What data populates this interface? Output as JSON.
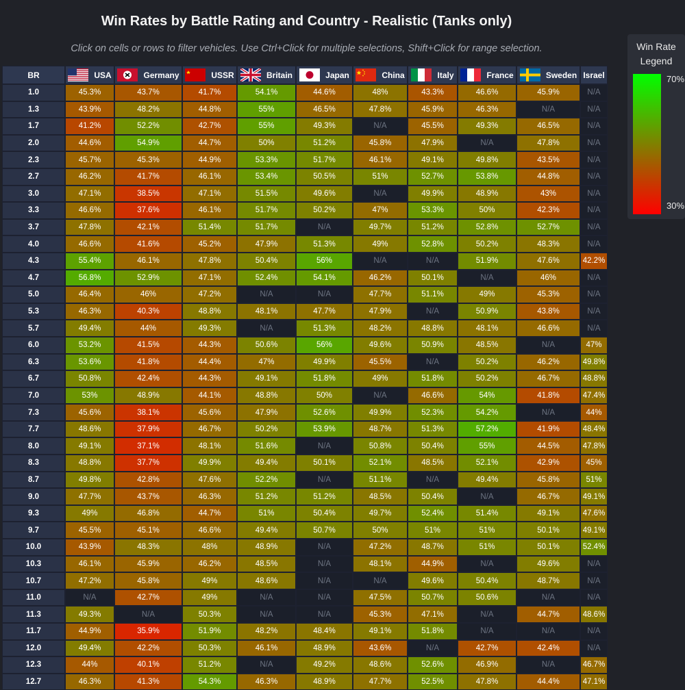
{
  "title": "Win Rates by Battle Rating and Country - Realistic (Tanks only)",
  "subtitle": "Click on cells or rows to filter vehicles. Use Ctrl+Click for multiple selections, Shift+Click for range selection.",
  "legend": {
    "title": "Win Rate Legend",
    "max_label": "70%",
    "min_label": "30%",
    "max_color": "#00ff00",
    "mid_color": "#808000",
    "min_color": "#ff0000"
  },
  "colors": {
    "background": "#202228",
    "header": "#2e3850",
    "na_cell": "#1b1f2a"
  },
  "chart_data": {
    "type": "heatmap",
    "title": "Win Rates by Battle Rating and Country - Realistic (Tanks only)",
    "row_header": "BR",
    "color_scale": {
      "min": 30,
      "max": 70,
      "unit": "%"
    },
    "columns": [
      {
        "name": "USA",
        "flag": "usa-flag"
      },
      {
        "name": "Germany",
        "flag": "germany-flag"
      },
      {
        "name": "USSR",
        "flag": "ussr-flag"
      },
      {
        "name": "Britain",
        "flag": "britain-flag"
      },
      {
        "name": "Japan",
        "flag": "japan-flag"
      },
      {
        "name": "China",
        "flag": "china-flag"
      },
      {
        "name": "Italy",
        "flag": "italy-flag"
      },
      {
        "name": "France",
        "flag": "france-flag"
      },
      {
        "name": "Sweden",
        "flag": "sweden-flag"
      },
      {
        "name": "Israel",
        "flag": ""
      }
    ],
    "rows": [
      "1.0",
      "1.3",
      "1.7",
      "2.0",
      "2.3",
      "2.7",
      "3.0",
      "3.3",
      "3.7",
      "4.0",
      "4.3",
      "4.7",
      "5.0",
      "5.3",
      "5.7",
      "6.0",
      "6.3",
      "6.7",
      "7.0",
      "7.3",
      "7.7",
      "8.0",
      "8.3",
      "8.7",
      "9.0",
      "9.3",
      "9.7",
      "10.0",
      "10.3",
      "10.7",
      "11.0",
      "11.3",
      "11.7",
      "12.0",
      "12.3",
      "12.7"
    ],
    "values": [
      [
        45.3,
        43.7,
        41.7,
        54.1,
        44.6,
        48,
        43.3,
        46.6,
        45.9,
        null
      ],
      [
        43.9,
        48.2,
        44.8,
        55,
        46.5,
        47.8,
        45.9,
        46.3,
        null,
        null
      ],
      [
        41.2,
        52.2,
        42.7,
        55,
        49.3,
        null,
        45.5,
        49.3,
        46.5,
        null
      ],
      [
        44.6,
        54.9,
        44.7,
        50,
        51.2,
        45.8,
        47.9,
        null,
        47.8,
        null
      ],
      [
        45.7,
        45.3,
        44.9,
        53.3,
        51.7,
        46.1,
        49.1,
        49.8,
        43.5,
        null
      ],
      [
        46.2,
        41.7,
        46.1,
        53.4,
        50.5,
        51,
        52.7,
        53.8,
        44.8,
        null
      ],
      [
        47.1,
        38.5,
        47.1,
        51.5,
        49.6,
        null,
        49.9,
        48.9,
        43,
        null
      ],
      [
        46.6,
        37.6,
        46.1,
        51.7,
        50.2,
        47,
        53.3,
        50,
        42.3,
        null
      ],
      [
        47.8,
        42.1,
        51.4,
        51.7,
        null,
        49.7,
        51.2,
        52.8,
        52.7,
        null
      ],
      [
        46.6,
        41.6,
        45.2,
        47.9,
        51.3,
        49,
        52.8,
        50.2,
        48.3,
        null
      ],
      [
        55.4,
        46.1,
        47.8,
        50.4,
        56,
        null,
        null,
        51.9,
        47.6,
        42.2
      ],
      [
        56.8,
        52.9,
        47.1,
        52.4,
        54.1,
        46.2,
        50.1,
        null,
        46,
        null
      ],
      [
        46.4,
        46,
        47.2,
        null,
        null,
        47.7,
        51.1,
        49,
        45.3,
        null
      ],
      [
        46.3,
        40.3,
        48.8,
        48.1,
        47.7,
        47.9,
        null,
        50.9,
        43.8,
        null
      ],
      [
        49.4,
        44,
        49.3,
        null,
        51.3,
        48.2,
        48.8,
        48.1,
        46.6,
        null
      ],
      [
        53.2,
        41.5,
        44.3,
        50.6,
        56,
        49.6,
        50.9,
        48.5,
        null,
        47
      ],
      [
        53.6,
        41.8,
        44.4,
        47,
        49.9,
        45.5,
        null,
        50.2,
        46.2,
        49.8
      ],
      [
        50.8,
        42.4,
        44.3,
        49.1,
        51.8,
        49,
        51.8,
        50.2,
        46.7,
        48.8
      ],
      [
        53,
        48.9,
        44.1,
        48.8,
        50,
        null,
        46.6,
        54,
        41.8,
        47.4
      ],
      [
        45.6,
        38.1,
        45.6,
        47.9,
        52.6,
        49.9,
        52.3,
        54.2,
        null,
        44
      ],
      [
        48.6,
        37.9,
        46.7,
        50.2,
        53.9,
        48.7,
        51.3,
        57.2,
        41.9,
        48.4
      ],
      [
        49.1,
        37.1,
        48.1,
        51.6,
        null,
        50.8,
        50.4,
        55,
        44.5,
        47.8
      ],
      [
        48.8,
        37.7,
        49.9,
        49.4,
        50.1,
        52.1,
        48.5,
        52.1,
        42.9,
        45
      ],
      [
        49.8,
        42.8,
        47.6,
        52.2,
        null,
        51.1,
        null,
        49.4,
        45.8,
        51
      ],
      [
        47.7,
        43.7,
        46.3,
        51.2,
        51.2,
        48.5,
        50.4,
        null,
        46.7,
        49.1
      ],
      [
        49,
        46.8,
        44.7,
        51,
        50.4,
        49.7,
        52.4,
        51.4,
        49.1,
        47.6
      ],
      [
        45.5,
        45.1,
        46.6,
        49.4,
        50.7,
        50,
        51,
        51,
        50.1,
        49.1
      ],
      [
        43.9,
        48.3,
        48,
        48.9,
        null,
        47.2,
        48.7,
        51,
        50.1,
        52.4
      ],
      [
        46.1,
        45.9,
        46.2,
        48.5,
        null,
        48.1,
        44.9,
        null,
        49.6,
        null
      ],
      [
        47.2,
        45.8,
        49,
        48.6,
        null,
        null,
        49.6,
        50.4,
        48.7,
        null
      ],
      [
        null,
        42.7,
        49,
        null,
        null,
        47.5,
        50.7,
        50.6,
        null,
        null
      ],
      [
        49.3,
        null,
        50.3,
        null,
        null,
        45.3,
        47.1,
        null,
        44.7,
        48.6
      ],
      [
        44.9,
        35.9,
        51.9,
        48.2,
        48.4,
        49.1,
        51.8,
        null,
        null,
        null
      ],
      [
        49.4,
        42.2,
        50.3,
        46.1,
        48.9,
        43.6,
        null,
        42.7,
        42.4,
        null
      ],
      [
        44,
        40.1,
        51.2,
        null,
        49.2,
        48.6,
        52.6,
        46.9,
        null,
        46.7
      ],
      [
        46.3,
        41.3,
        54.3,
        46.3,
        48.9,
        47.7,
        52.5,
        47.8,
        44.4,
        47.1
      ]
    ],
    "na_label": "N/A"
  }
}
